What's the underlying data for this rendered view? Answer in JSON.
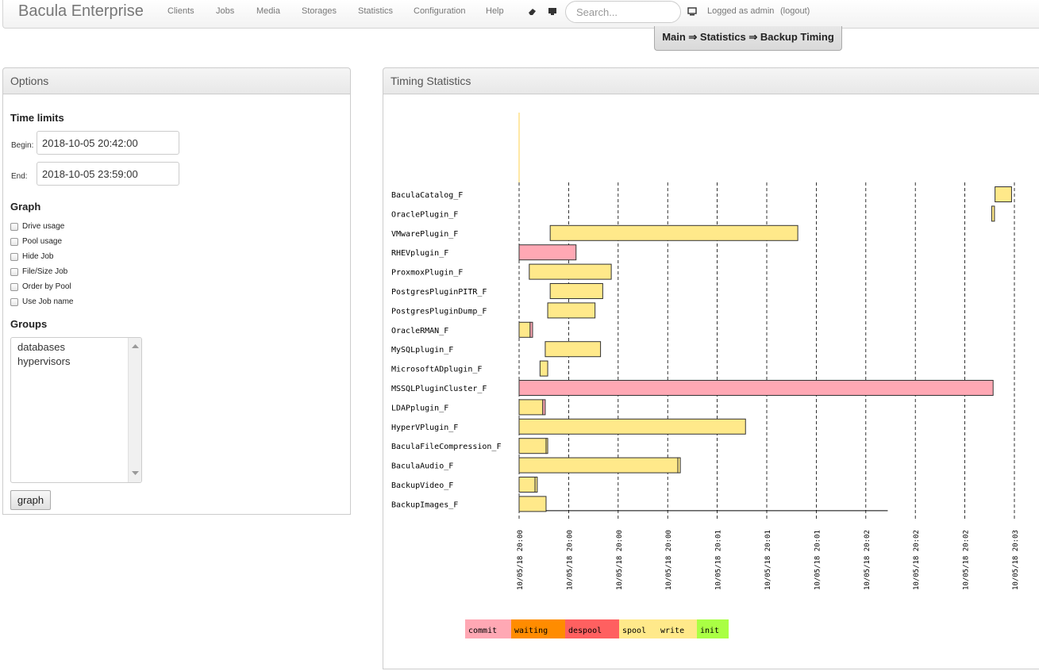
{
  "navbar": {
    "brand": "Bacula Enterprise",
    "links": [
      "Clients",
      "Jobs",
      "Media",
      "Storages",
      "Statistics",
      "Configuration",
      "Help"
    ],
    "search_placeholder": "Search...",
    "logged_as": "Logged as admin",
    "logout": "(logout)"
  },
  "breadcrumb": "Main ⇒ Statistics ⇒ Backup Timing",
  "options": {
    "title": "Options",
    "time_limits": {
      "heading": "Time limits",
      "begin_label": "Begin:",
      "begin_value": "2018-10-05 20:42:00",
      "end_label": "End:",
      "end_value": "2018-10-05 23:59:00"
    },
    "graph": {
      "heading": "Graph",
      "checkboxes": [
        "Drive usage",
        "Pool usage",
        "Hide Job",
        "File/Size Job",
        "Order by Pool",
        "Use Job name"
      ]
    },
    "groups": {
      "heading": "Groups",
      "items": [
        "databases",
        "hypervisors"
      ]
    },
    "graph_button": "graph"
  },
  "timing": {
    "title": "Timing Statistics"
  },
  "chart_data": {
    "type": "gantt",
    "colors": {
      "commit": "#ffa8b4",
      "waiting": "#ff8c00",
      "despool": "#ff6060",
      "spool": "#ffe98a",
      "write": "#ffe98a",
      "init": "#aaff44"
    },
    "x_ticks": [
      "10/05/18 20:00",
      "10/05/18 20:00",
      "10/05/18 20:00",
      "10/05/18 20:00",
      "10/05/18 20:01",
      "10/05/18 20:01",
      "10/05/18 20:01",
      "10/05/18 20:02",
      "10/05/18 20:02",
      "10/05/18 20:02",
      "10/05/18 20:03"
    ],
    "x_range_seconds": [
      0,
      180
    ],
    "jobs": [
      {
        "name": "BaculaCatalog_F",
        "segments": [
          {
            "start": 173,
            "end": 179,
            "state": "spool"
          }
        ]
      },
      {
        "name": "OraclePlugin_F",
        "segments": [
          {
            "start": 171.8,
            "end": 172.8,
            "state": "spool"
          }
        ]
      },
      {
        "name": "VMwarePlugin_F",
        "segments": [
          {
            "start": 11.3,
            "end": 101.3,
            "state": "spool"
          }
        ]
      },
      {
        "name": "RHEVplugin_F",
        "segments": [
          {
            "start": 0,
            "end": 20.7,
            "state": "commit"
          }
        ]
      },
      {
        "name": "ProxmoxPlugin_F",
        "segments": [
          {
            "start": 3.7,
            "end": 33.5,
            "state": "spool"
          }
        ]
      },
      {
        "name": "PostgresPluginPITR_F",
        "segments": [
          {
            "start": 11.3,
            "end": 30.4,
            "state": "spool"
          }
        ]
      },
      {
        "name": "PostgresPluginDump_F",
        "segments": [
          {
            "start": 10.4,
            "end": 27.6,
            "state": "spool"
          }
        ]
      },
      {
        "name": "OracleRMAN_F",
        "segments": [
          {
            "start": 0,
            "end": 4,
            "state": "spool"
          },
          {
            "start": 4,
            "end": 4.9,
            "state": "commit"
          }
        ]
      },
      {
        "name": "MySQLplugin_F",
        "segments": [
          {
            "start": 9.5,
            "end": 29.6,
            "state": "spool"
          }
        ]
      },
      {
        "name": "MicrosoftADplugin_F",
        "segments": [
          {
            "start": 7.6,
            "end": 10.4,
            "state": "spool"
          }
        ]
      },
      {
        "name": "MSSQLPluginCluster_F",
        "segments": [
          {
            "start": 0,
            "end": 172.3,
            "state": "commit"
          }
        ]
      },
      {
        "name": "LDAPplugin_F",
        "segments": [
          {
            "start": 0,
            "end": 8.6,
            "state": "spool"
          },
          {
            "start": 8.6,
            "end": 9.5,
            "state": "commit"
          }
        ]
      },
      {
        "name": "HyperVPlugin_F",
        "segments": [
          {
            "start": 0,
            "end": 82.3,
            "state": "spool"
          }
        ]
      },
      {
        "name": "BaculaFileCompression_F",
        "segments": [
          {
            "start": 0,
            "end": 9.8,
            "state": "spool"
          },
          {
            "start": 9.8,
            "end": 10.4,
            "state": "write"
          }
        ]
      },
      {
        "name": "BaculaAudio_F",
        "segments": [
          {
            "start": 0,
            "end": 57.7,
            "state": "spool"
          },
          {
            "start": 57.7,
            "end": 58.6,
            "state": "write"
          }
        ]
      },
      {
        "name": "BackupVideo_F",
        "segments": [
          {
            "start": 0,
            "end": 5.8,
            "state": "spool"
          },
          {
            "start": 5.8,
            "end": 6.6,
            "state": "write"
          }
        ]
      },
      {
        "name": "BackupImages_F",
        "segments": [
          {
            "start": 0,
            "end": 9.8,
            "state": "spool"
          },
          {
            "start": 9.8,
            "end": 134,
            "state": "line"
          }
        ]
      }
    ],
    "legend": [
      "commit",
      "waiting",
      "despool",
      "spool",
      "write",
      "init"
    ]
  }
}
